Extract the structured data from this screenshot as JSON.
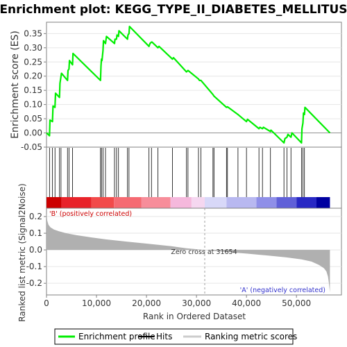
{
  "chart_data": {
    "title": "Enrichment plot: KEGG_TYPE_II_DIABETES_MELLITUS",
    "es_panel": {
      "type": "line",
      "ylabel": "Enrichment score (ES)",
      "ylim": [
        -0.05,
        0.39
      ],
      "yticks": [
        -0.05,
        0.0,
        0.05,
        0.1,
        0.15,
        0.2,
        0.25,
        0.3,
        0.35
      ],
      "ytick_labels": [
        "-0.05",
        "0.00",
        "0.05",
        "0.10",
        "0.15",
        "0.20",
        "0.25",
        "0.30",
        "0.35"
      ],
      "line_color": "#00ee00",
      "series": [
        {
          "x": [
            0,
            600,
            700,
            1200,
            1300,
            1700,
            1800,
            2600,
            2700,
            3000,
            4200,
            4300,
            4500,
            4600,
            5200,
            5300,
            10800,
            10900,
            11000,
            11100,
            11300,
            11400,
            11800,
            12000,
            13600,
            13700,
            14000,
            14100,
            14400,
            14500,
            16200,
            16300,
            16500,
            16600,
            20500,
            20700,
            21000,
            21100,
            22300,
            22500,
            25200,
            25400,
            28000,
            28300,
            30400,
            30600,
            30900,
            33300,
            33500,
            36000,
            36200,
            38300,
            38500,
            40000,
            40200,
            42500,
            42700,
            43200,
            43400,
            44800,
            44900,
            47500,
            47700,
            48100,
            48300,
            48900,
            49100,
            51000,
            51100,
            51300,
            51400,
            51600,
            51700,
            56700
          ],
          "y": [
            0.0,
            -0.01,
            0.045,
            0.04,
            0.095,
            0.09,
            0.14,
            0.125,
            0.175,
            0.21,
            0.185,
            0.22,
            0.225,
            0.255,
            0.24,
            0.28,
            0.185,
            0.235,
            0.26,
            0.255,
            0.29,
            0.325,
            0.315,
            0.34,
            0.315,
            0.33,
            0.33,
            0.345,
            0.34,
            0.36,
            0.33,
            0.345,
            0.35,
            0.375,
            0.305,
            0.315,
            0.32,
            0.32,
            0.3,
            0.305,
            0.26,
            0.265,
            0.215,
            0.22,
            0.19,
            0.185,
            0.185,
            0.135,
            0.13,
            0.09,
            0.092,
            0.065,
            0.062,
            0.04,
            0.048,
            0.015,
            0.02,
            0.015,
            0.02,
            0.005,
            0.01,
            -0.035,
            -0.02,
            -0.015,
            -0.005,
            -0.015,
            0.0,
            -0.035,
            0.015,
            0.035,
            0.07,
            0.065,
            0.09,
            0.0
          ]
        }
      ]
    },
    "hits_panel": {
      "hit_positions": [
        600,
        1200,
        1700,
        2600,
        2900,
        4200,
        4500,
        5200,
        10800,
        11000,
        11300,
        11800,
        13600,
        14000,
        14400,
        16200,
        16500,
        20500,
        21000,
        22300,
        25200,
        28000,
        28300,
        30400,
        30900,
        33300,
        33500,
        36000,
        36200,
        38300,
        40000,
        42500,
        43200,
        44800,
        47500,
        48100,
        48900,
        51000,
        51300,
        51600
      ],
      "color_bar": [
        {
          "from": 0,
          "to": 3000,
          "color": "#cc0000"
        },
        {
          "from": 3000,
          "to": 9000,
          "color": "#e8232a"
        },
        {
          "from": 9000,
          "to": 13500,
          "color": "#f24a4a"
        },
        {
          "from": 13500,
          "to": 19000,
          "color": "#f56a72"
        },
        {
          "from": 19000,
          "to": 24800,
          "color": "#f78d9a"
        },
        {
          "from": 24800,
          "to": 29000,
          "color": "#f5b8dc"
        },
        {
          "from": 29000,
          "to": 31654,
          "color": "#f5d7f0"
        },
        {
          "from": 31654,
          "to": 36000,
          "color": "#d8d8f8"
        },
        {
          "from": 36000,
          "to": 42000,
          "color": "#b8b8f0"
        },
        {
          "from": 42000,
          "to": 46000,
          "color": "#8f8fe8"
        },
        {
          "from": 46000,
          "to": 50000,
          "color": "#6060d8"
        },
        {
          "from": 50000,
          "to": 54000,
          "color": "#2828c4"
        },
        {
          "from": 54000,
          "to": 56700,
          "color": "#0000a0"
        }
      ]
    },
    "metric_panel": {
      "type": "area",
      "xlabel": "Rank in Ordered Dataset",
      "ylabel": "Ranked list metric (Signal2Noise)",
      "xlim": [
        0,
        59000
      ],
      "xticks": [
        0,
        10000,
        20000,
        30000,
        40000,
        50000
      ],
      "xtick_labels": [
        "0",
        "10,000",
        "20,000",
        "30,000",
        "40,000",
        "50,000"
      ],
      "ylim": [
        -0.27,
        0.25
      ],
      "yticks": [
        -0.2,
        -0.1,
        0.0,
        0.1,
        0.2
      ],
      "ytick_labels": [
        "-0.2",
        "-0.1",
        "0.0",
        "0.1",
        "0.2"
      ],
      "fill_color": "#b0b0b0",
      "x": [
        0,
        150,
        400,
        800,
        1500,
        2500,
        4000,
        6000,
        9000,
        12000,
        16000,
        20000,
        25000,
        28000,
        31654,
        35000,
        40000,
        44000,
        48000,
        51000,
        53000,
        54500,
        55500,
        56000,
        56300,
        56500,
        56700
      ],
      "y": [
        0.22,
        0.175,
        0.15,
        0.135,
        0.122,
        0.112,
        0.1,
        0.088,
        0.075,
        0.063,
        0.05,
        0.038,
        0.022,
        0.01,
        0.0,
        -0.01,
        -0.022,
        -0.033,
        -0.045,
        -0.057,
        -0.07,
        -0.09,
        -0.11,
        -0.13,
        -0.16,
        -0.2,
        -0.255
      ],
      "zero_cross": 31654
    },
    "annotations": {
      "positive": "'B' (positively correlated)",
      "negative": "'A' (negatively correlated)",
      "zero_cross": "Zero cross at 31654"
    },
    "legend": [
      {
        "label": "Enrichment profile",
        "color": "#00ee00"
      },
      {
        "label": "Hits",
        "color": "#000000"
      },
      {
        "label": "Ranking metric scores",
        "color": "#cccccc"
      }
    ]
  }
}
